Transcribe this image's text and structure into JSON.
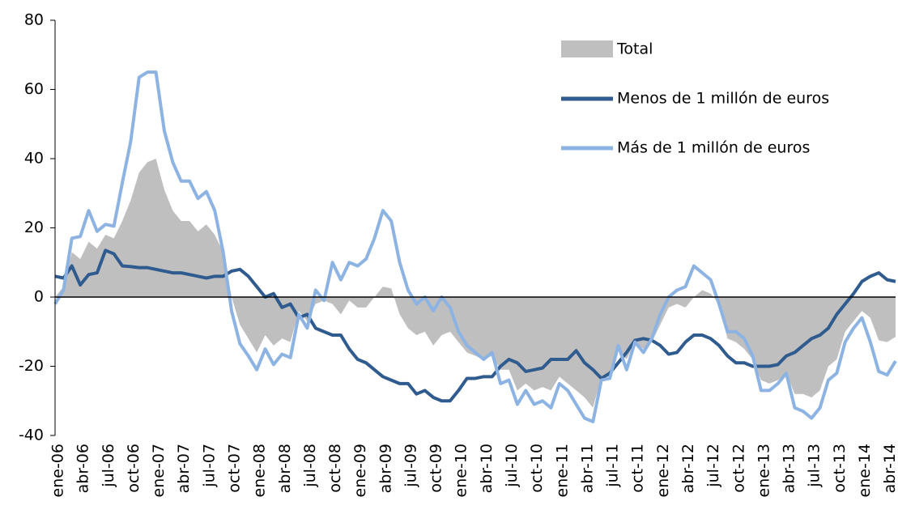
{
  "chart_data": {
    "type": "line_area",
    "categories": [
      "ene-06",
      null,
      null,
      "abr-06",
      null,
      null,
      "jul-06",
      null,
      null,
      "oct-06",
      null,
      null,
      "ene-07",
      null,
      null,
      "abr-07",
      null,
      null,
      "jul-07",
      null,
      null,
      "oct-07",
      null,
      null,
      "ene-08",
      null,
      null,
      "abr-08",
      null,
      null,
      "jul-08",
      null,
      null,
      "oct-08",
      null,
      null,
      "ene-09",
      null,
      null,
      "abr-09",
      null,
      null,
      "jul-09",
      null,
      null,
      "oct-09",
      null,
      null,
      "ene-10",
      null,
      null,
      "abr-10",
      null,
      null,
      "jul-10",
      null,
      null,
      "oct-10",
      null,
      null,
      "ene-11",
      null,
      null,
      "abr-11",
      null,
      null,
      "jul-11",
      null,
      null,
      "oct-11",
      null,
      null,
      "ene-12",
      null,
      null,
      "abr-12",
      null,
      null,
      "jul-12",
      null,
      null,
      "oct-12",
      null,
      null,
      "ene-13",
      null,
      null,
      "abr-13",
      null,
      null,
      "jul-13",
      null,
      null,
      "oct-13",
      null,
      null,
      "ene-14",
      null,
      null,
      "abr-14",
      null
    ],
    "series": [
      {
        "name": "Total",
        "kind": "area",
        "color": "#bfbfbf",
        "values": [
          0,
          3,
          13,
          11,
          16,
          14,
          18,
          17,
          22,
          28,
          36,
          39,
          40,
          31,
          25,
          22,
          22,
          19,
          21,
          18,
          13,
          0,
          -8,
          -12,
          -16,
          -11,
          -14,
          -12,
          -13,
          -4,
          -7,
          -2,
          -1,
          -2,
          -5,
          -1,
          -3,
          -3,
          0,
          3,
          2.5,
          -5,
          -9,
          -11,
          -10,
          -14,
          -11,
          -10,
          -13,
          -16,
          -17,
          -18,
          -17,
          -21,
          -21,
          -27,
          -25,
          -27,
          -26,
          -27,
          -23,
          -25,
          -27,
          -29,
          -32,
          -23,
          -23,
          -15,
          -18,
          -13,
          -15,
          -13,
          -8,
          -3,
          -2,
          -3,
          0,
          2,
          1,
          -2,
          -12,
          -13,
          -15,
          -18,
          -24,
          -25,
          -24,
          -22,
          -28,
          -28,
          -29,
          -27,
          -20,
          -18,
          -10,
          -7,
          -4,
          -6,
          -12.5,
          -13,
          -11.5
        ]
      },
      {
        "name": "Menos de 1 millón de euros",
        "kind": "line",
        "color": "#2f5b8f",
        "values": [
          6,
          5.5,
          9,
          3.5,
          6.5,
          7,
          13.5,
          12.5,
          9,
          8.8,
          8.5,
          8.5,
          8,
          7.5,
          7,
          7,
          6.5,
          6,
          5.5,
          6,
          6,
          7.5,
          8,
          6,
          3,
          0,
          1,
          -3,
          -2,
          -6,
          -5,
          -9,
          -10,
          -11,
          -11,
          -15,
          -18,
          -19,
          -21,
          -23,
          -24,
          -25,
          -25,
          -28,
          -27,
          -29,
          -30,
          -30,
          -27,
          -23.5,
          -23.5,
          -23,
          -23,
          -20,
          -18,
          -19,
          -21.5,
          -21,
          -20.5,
          -18,
          -18,
          -18,
          -15.5,
          -19,
          -21,
          -23.5,
          -22,
          -19,
          -16,
          -12.5,
          -12,
          -12.5,
          -14,
          -16.5,
          -16,
          -13,
          -11,
          -11,
          -12,
          -14,
          -17,
          -19,
          -19,
          -20,
          -20,
          -20,
          -19.5,
          -17,
          -16,
          -14,
          -12,
          -11,
          -9,
          -5,
          -2,
          1,
          4.5,
          6,
          7,
          5,
          4.5
        ]
      },
      {
        "name": "Más de 1 millón de euros",
        "kind": "line",
        "color": "#8db3e2",
        "values": [
          -2,
          2,
          17,
          17.5,
          25,
          19,
          21,
          20.5,
          33,
          45,
          63.5,
          65,
          65,
          48,
          39,
          33.5,
          33.5,
          28.5,
          30.5,
          25,
          13,
          -4,
          -13.5,
          -17,
          -21,
          -15,
          -19.5,
          -16.5,
          -17.5,
          -5,
          -9,
          2,
          -1,
          10,
          5,
          10,
          9,
          11,
          17,
          25,
          22,
          10,
          2,
          -2,
          0,
          -4,
          0,
          -3,
          -10,
          -14,
          -16,
          -18,
          -16,
          -25,
          -24,
          -31,
          -27,
          -31,
          -30,
          -32,
          -25,
          -27,
          -31,
          -35,
          -36,
          -24,
          -23.5,
          -14,
          -21,
          -13,
          -16,
          -12,
          -5,
          0,
          2,
          3,
          9,
          7,
          5,
          -2,
          -10,
          -10,
          -12,
          -17,
          -27,
          -27,
          -25,
          -22,
          -32,
          -33,
          -35,
          -32,
          -24,
          -22,
          -13,
          -9,
          -6,
          -13,
          -21.5,
          -22.5,
          -18.5
        ]
      }
    ],
    "ylim": [
      -40,
      80
    ],
    "yticks": [
      -40,
      -20,
      0,
      20,
      40,
      60,
      80
    ]
  }
}
